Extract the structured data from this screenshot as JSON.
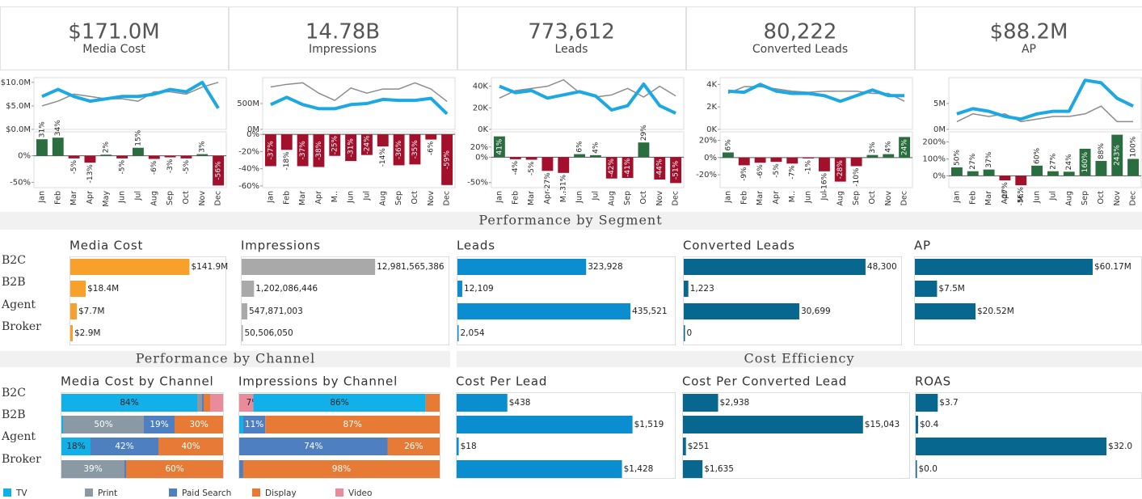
{
  "kpis": [
    {
      "value": "$171.0M",
      "label": "Media Cost"
    },
    {
      "value": "14.78B",
      "label": "Impressions"
    },
    {
      "value": "773,612",
      "label": "Leads"
    },
    {
      "value": "80,222",
      "label": "Converted Leads"
    },
    {
      "value": "$88.2M",
      "label": "AP"
    }
  ],
  "sections": {
    "segment": {
      "title": "Performance by Segment",
      "categories": [
        "B2C",
        "B2B",
        "Agent",
        "Broker"
      ]
    },
    "channel": {
      "title": "Performance by Channel",
      "categories": [
        "B2C",
        "B2B",
        "Agent",
        "Broker"
      ]
    },
    "efficiency": {
      "title": "Cost Efficiency"
    }
  },
  "chart_data": [
    {
      "type": "line",
      "categories": [
        "Jan",
        "Feb",
        "Mar",
        "Apr",
        "May",
        "Jun",
        "Jul",
        "Aug",
        "Sep",
        "Oct",
        "Nov",
        "Dec"
      ],
      "ylim": [
        0,
        11
      ],
      "yticks": [
        {
          "value": 10,
          "label": "$10.0M"
        },
        {
          "value": 5,
          "label": "$5.0M"
        },
        {
          "value": 0,
          "label": "$0.0M"
        }
      ],
      "series": [
        {
          "color": "#8c8c8c",
          "values": [
            5,
            6,
            7.5,
            7,
            6.5,
            6.5,
            6,
            8,
            8,
            7.5,
            9,
            10
          ]
        },
        {
          "color": "#1ca8e2",
          "values": [
            7,
            8.5,
            7,
            6,
            6.5,
            7,
            7,
            7.5,
            8.5,
            8,
            10,
            4.5
          ]
        }
      ],
      "change_values": [
        31,
        34,
        -5,
        -13,
        2,
        -5,
        15,
        -6,
        -3,
        -5,
        3,
        -56
      ],
      "change_labels": [
        "31%",
        "34%",
        "-5%",
        "-13%",
        "2%",
        "-5%",
        "15%",
        "-6%",
        "-3%",
        "-5%",
        "3%",
        "-56%"
      ],
      "change_ylim": [
        -60,
        45
      ],
      "change_yticks": [
        {
          "value": 0,
          "label": "0%"
        },
        {
          "value": -50,
          "label": "-50%"
        }
      ],
      "positive_color": "#2a6d3e",
      "negative_color": "#a3102c"
    },
    {
      "type": "line",
      "categories": [
        "Jan",
        "Feb",
        "Mar",
        "Apr",
        "M..",
        "Jun",
        "Jul",
        "Aug",
        "Sep",
        "Oct",
        "Nov",
        "Dec"
      ],
      "ylim": [
        0,
        1000
      ],
      "yticks": [
        {
          "value": 500,
          "label": "500M"
        },
        {
          "value": 0,
          "label": "0M"
        }
      ],
      "series": [
        {
          "color": "#8c8c8c",
          "values": [
            820,
            870,
            900,
            700,
            560,
            800,
            700,
            780,
            780,
            900,
            780,
            540
          ]
        },
        {
          "color": "#1ca8e2",
          "values": [
            480,
            620,
            480,
            400,
            400,
            480,
            500,
            580,
            560,
            560,
            600,
            300
          ]
        }
      ],
      "change_values": [
        -37,
        -18,
        -37,
        -38,
        -25,
        -31,
        -24,
        -14,
        -36,
        -35,
        -6,
        -59
      ],
      "change_labels": [
        "-37%",
        "-18%",
        "-37%",
        "-38%",
        "-25%",
        "-31%",
        "-24%",
        "-14%",
        "-36%",
        "-35%",
        "-6%",
        "-59%"
      ],
      "change_ylim": [
        -62,
        3
      ],
      "change_yticks": [
        {
          "value": 0,
          "label": "0%"
        },
        {
          "value": -20,
          "label": "-20%"
        },
        {
          "value": -40,
          "label": "-40%"
        },
        {
          "value": -60,
          "label": "-60%"
        }
      ],
      "positive_color": "#2a6d3e",
      "negative_color": "#a3102c"
    },
    {
      "type": "line",
      "categories": [
        "Jan",
        "Feb",
        "Mar",
        "Apr",
        "M..",
        "Jun",
        "Jul",
        "Aug",
        "Sep",
        "Oct",
        "Nov",
        "Dec"
      ],
      "ylim": [
        0,
        48
      ],
      "yticks": [
        {
          "value": 40,
          "label": "40K"
        },
        {
          "value": 20,
          "label": "20K"
        },
        {
          "value": 0,
          "label": "0K"
        }
      ],
      "series": [
        {
          "color": "#8c8c8c",
          "values": [
            29,
            36,
            38,
            40,
            46,
            34,
            30,
            32,
            38,
            30,
            40,
            31
          ]
        },
        {
          "color": "#1ca8e2",
          "values": [
            40,
            34,
            36,
            29,
            32,
            35,
            31,
            18,
            22,
            42,
            22,
            15
          ]
        }
      ],
      "change_values": [
        41,
        -4,
        -5,
        -27,
        -31,
        6,
        4,
        -42,
        -41,
        29,
        -44,
        -51
      ],
      "change_labels": [
        "41%",
        "-4%",
        "-5%",
        "-27%",
        "-31%",
        "6%",
        "4%",
        "-42%",
        "-41%",
        "29%",
        "-44%",
        "-51%"
      ],
      "change_ylim": [
        -60,
        50
      ],
      "change_yticks": [
        {
          "value": 20,
          "label": "20%"
        },
        {
          "value": 0,
          "label": "0%"
        },
        {
          "value": -50,
          "label": "-50%"
        }
      ],
      "positive_color": "#2a6d3e",
      "negative_color": "#a3102c"
    },
    {
      "type": "line",
      "categories": [
        "Jan",
        "Feb",
        "Mar",
        "Apr",
        "M..",
        "Jun",
        "Jul",
        "Aug",
        "Sep",
        "Oct",
        "Nov",
        "Dec"
      ],
      "ylim": [
        0,
        4.6
      ],
      "yticks": [
        {
          "value": 4,
          "label": "4K"
        },
        {
          "value": 2,
          "label": "2K"
        },
        {
          "value": 0,
          "label": "0K"
        }
      ],
      "series": [
        {
          "color": "#8c8c8c",
          "values": [
            3.2,
            3.8,
            3.8,
            3.6,
            3.4,
            3.3,
            3.4,
            3.4,
            3.4,
            3.2,
            3.2,
            2.5
          ]
        },
        {
          "color": "#1ca8e2",
          "values": [
            3.4,
            3.3,
            4.0,
            3.4,
            3.2,
            3.2,
            3.0,
            2.5,
            3.0,
            3.5,
            3.0,
            3.0
          ]
        }
      ],
      "change_values": [
        6,
        -9,
        -6,
        -5,
        -7,
        -1,
        -16,
        -28,
        -10,
        3,
        4,
        24
      ],
      "change_labels": [
        "6%",
        "-9%",
        "-6%",
        "-5%",
        "-7%",
        "-1%",
        "-16%",
        "-28%",
        "-10%",
        "3%",
        "4%",
        "24%"
      ],
      "change_ylim": [
        -35,
        30
      ],
      "change_yticks": [
        {
          "value": 20,
          "label": "20%"
        },
        {
          "value": 0,
          "label": "0%"
        },
        {
          "value": -20,
          "label": "-20%"
        }
      ],
      "positive_color": "#2a6d3e",
      "negative_color": "#a3102c"
    },
    {
      "type": "line",
      "categories": [
        "Jan",
        "Feb",
        "Mar",
        "Apr",
        "M..",
        "Jun",
        "Jul",
        "Aug",
        "Sep",
        "Oct",
        "Nov",
        "Dec"
      ],
      "ylim": [
        0,
        10
      ],
      "yticks": [
        {
          "value": 5,
          "label": "5M"
        },
        {
          "value": 0,
          "label": "0M"
        }
      ],
      "series": [
        {
          "color": "#8c8c8c",
          "values": [
            1.5,
            3,
            2.5,
            3,
            1.5,
            2,
            2.5,
            2.5,
            3,
            4.5,
            1.5,
            1.5
          ]
        },
        {
          "color": "#1ca8e2",
          "values": [
            3,
            4,
            3.5,
            2.5,
            2,
            3,
            3.5,
            3.5,
            9.5,
            9,
            6,
            4.5
          ]
        }
      ],
      "change_values": [
        50,
        27,
        37,
        -27,
        -56,
        60,
        27,
        24,
        160,
        88,
        243,
        100
      ],
      "change_labels": [
        "50%",
        "27%",
        "37%",
        "-27%",
        "-56%",
        "60%",
        "27%",
        "24%",
        "160%",
        "88%",
        "243%",
        "100%"
      ],
      "change_ylim": [
        -70,
        260
      ],
      "change_yticks": [
        {
          "value": 200,
          "label": "200%"
        },
        {
          "value": 100,
          "label": "100%"
        },
        {
          "value": 0,
          "label": "0%"
        }
      ],
      "positive_color": "#2a6d3e",
      "negative_color": "#a3102c"
    },
    {
      "type": "hbar",
      "title": "Media Cost",
      "values": [
        141.9,
        18.4,
        7.7,
        2.9
      ],
      "value_labels": [
        "$141.9M",
        "$18.4M",
        "$7.7M",
        "$2.9M"
      ],
      "color": "#f7a02a"
    },
    {
      "type": "hbar",
      "title": "Impressions",
      "values": [
        12981565386,
        1202086446,
        547871003,
        50506050
      ],
      "value_labels": [
        "12,981,565,386",
        "1,202,086,446",
        "547,871,003",
        "50,506,050"
      ],
      "color": "#a9a9a9"
    },
    {
      "type": "hbar",
      "title": "Leads",
      "values": [
        323928,
        12109,
        435521,
        2054
      ],
      "value_labels": [
        "323,928",
        "12,109",
        "435,521",
        "2,054"
      ],
      "color": "#0b8ecf"
    },
    {
      "type": "hbar",
      "title": "Converted Leads",
      "values": [
        48300,
        1223,
        30699,
        0
      ],
      "value_labels": [
        "48,300",
        "1,223",
        "30,699",
        "0"
      ],
      "color": "#07678f"
    },
    {
      "type": "hbar",
      "title": "AP",
      "values": [
        60.17,
        7.5,
        20.52,
        null
      ],
      "value_labels": [
        "$60.17M",
        "$7.5M",
        "$20.52M",
        null
      ],
      "color": "#07678f"
    },
    {
      "type": "stacked_hbar",
      "title": "Media Cost by Channel",
      "series": [
        {
          "name": "TV",
          "color": "#11b0e9",
          "values": [
            84,
            1,
            18,
            0
          ],
          "value_labels": [
            "84%",
            null,
            "18%",
            null
          ]
        },
        {
          "name": "Print",
          "color": "#8a99a4",
          "values": [
            3,
            50,
            0,
            39
          ],
          "value_labels": [
            null,
            "50%",
            null,
            "39%"
          ]
        },
        {
          "name": "Paid Search",
          "color": "#4d7fc1",
          "values": [
            1,
            19,
            42,
            1
          ],
          "value_labels": [
            null,
            "19%",
            "42%",
            null
          ]
        },
        {
          "name": "Display",
          "color": "#e77b36",
          "values": [
            4,
            30,
            40,
            60
          ],
          "value_labels": [
            null,
            "30%",
            "40%",
            "60%"
          ]
        },
        {
          "name": "Video",
          "color": "#ea8b9c",
          "values": [
            8,
            0,
            0,
            0
          ],
          "value_labels": [
            null,
            null,
            null,
            null
          ]
        }
      ]
    },
    {
      "type": "stacked_hbar",
      "title": "Impressions by Channel",
      "series": [
        {
          "color": "#ea8b9c",
          "values": [
            7,
            0,
            0,
            0
          ],
          "value_labels": [
            "7%",
            null,
            null,
            null
          ]
        },
        {
          "color": "#11b0e9",
          "values": [
            86,
            2,
            0,
            0
          ],
          "value_labels": [
            "86%",
            null,
            null,
            null
          ]
        },
        {
          "color": "#4d7fc1",
          "values": [
            0,
            11,
            74,
            2
          ],
          "value_labels": [
            null,
            "11%",
            "74%",
            null
          ]
        },
        {
          "color": "#e77b36",
          "values": [
            7,
            87,
            26,
            98
          ],
          "value_labels": [
            null,
            "87%",
            "26%",
            "98%"
          ]
        }
      ]
    },
    {
      "type": "hbar",
      "title": "Cost Per Lead",
      "values": [
        438,
        1519,
        18,
        1428
      ],
      "value_labels": [
        "$438",
        "$1,519",
        "$18",
        "$1,428"
      ],
      "color": "#0b8ecf"
    },
    {
      "type": "hbar",
      "title": "Cost Per Converted Lead",
      "values": [
        2938,
        15043,
        251,
        1635
      ],
      "value_labels": [
        "$2,938",
        "$15,043",
        "$251",
        "$1,635"
      ],
      "color": "#07678f"
    },
    {
      "type": "hbar",
      "title": "ROAS",
      "values": [
        3.7,
        0.4,
        32.0,
        0.0
      ],
      "value_labels": [
        "$3.7",
        "$0.4",
        "$32.0",
        "$0.0"
      ],
      "color": "#07678f"
    }
  ]
}
